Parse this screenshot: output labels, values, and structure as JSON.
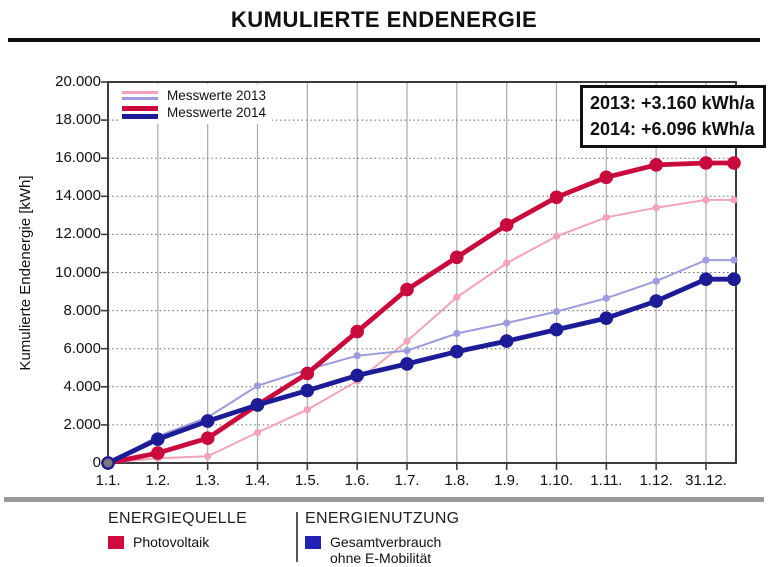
{
  "title": "KUMULIERTE ENDENERGIE",
  "colors": {
    "pv_2013": "#F2A3B8",
    "verbrauch_2013": "#9C9CDE",
    "pv_2014": "#C80A3C",
    "verbrauch_2014": "#1C1C96",
    "origin_marker": "#7a7a7a",
    "frame": "#3c3c3c",
    "gridline_vertical": "#ababab",
    "gridline_horizontal": "#666666",
    "source_swatch": "#D00A3C",
    "usage_swatch": "#2121B5"
  },
  "chart_data": {
    "type": "line",
    "title": "KUMULIERTE ENDENERGIE",
    "ylabel": "Kumulierte Endenergie [kWh]",
    "ylim": [
      0,
      20000
    ],
    "ytick_step": 2000,
    "ytick_labels": [
      "0",
      "2.000",
      "4.000",
      "6.000",
      "8.000",
      "10.000",
      "12.000",
      "14.000",
      "16.000",
      "18.000",
      "20.000"
    ],
    "categories": [
      "1.1.",
      "1.2.",
      "1.3.",
      "1.4.",
      "1.5.",
      "1.6.",
      "1.7.",
      "1.8.",
      "1.9.",
      "1.10.",
      "1.11.",
      "1.12.",
      "31.12."
    ],
    "grid": {
      "vertical": "solid",
      "horizontal": "dotted"
    },
    "series": [
      {
        "name": "Messwerte 2013 Photovoltaik",
        "slug": "messwerte-2013-photovoltaik",
        "color": "#F2A3B8",
        "style": "thin",
        "values": [
          0,
          250,
          350,
          1600,
          2800,
          4300,
          6400,
          8700,
          10500,
          11900,
          12900,
          13400,
          13810
        ]
      },
      {
        "name": "Messwerte 2013 Gesamtverbrauch ohne E-Mobilität",
        "slug": "messwerte-2013-gesamtverbrauch",
        "color": "#9C9CDE",
        "style": "thin",
        "values": [
          0,
          1400,
          2400,
          4050,
          4900,
          5630,
          5900,
          6800,
          7350,
          7950,
          8650,
          9550,
          10650
        ]
      },
      {
        "name": "Messwerte 2014 Photovoltaik",
        "slug": "messwerte-2014-photovoltaik",
        "color": "#C80A3C",
        "style": "thick",
        "values": [
          0,
          520,
          1300,
          3050,
          4700,
          6900,
          9100,
          10800,
          12500,
          13950,
          15000,
          15650,
          15750
        ]
      },
      {
        "name": "Messwerte 2014 Gesamtverbrauch ohne E-Mobilität",
        "slug": "messwerte-2014-gesamtverbrauch",
        "color": "#1C1C96",
        "style": "thick",
        "values": [
          0,
          1250,
          2200,
          3050,
          3800,
          4600,
          5200,
          5850,
          6400,
          7000,
          7600,
          8500,
          9650
        ]
      }
    ],
    "legend": [
      {
        "label": "Messwerte 2013",
        "colors": [
          "#F2A3B8",
          "#9C9CDE"
        ],
        "style": "thin"
      },
      {
        "label": "Messwerte 2014",
        "colors": [
          "#C80A3C",
          "#1C1C96"
        ],
        "style": "thick"
      }
    ],
    "annotation": [
      "2013: +3.160 kWh/a",
      "2014: +6.096 kWh/a"
    ],
    "legend_position": "top-left"
  },
  "bottom_legend": {
    "source_heading": "ENERGIEQUELLE",
    "source_item": "Photovoltaik",
    "usage_heading": "ENERGIENUTZUNG",
    "usage_item_line1": "Gesamtverbrauch",
    "usage_item_line2": "ohne E-Mobilität"
  }
}
